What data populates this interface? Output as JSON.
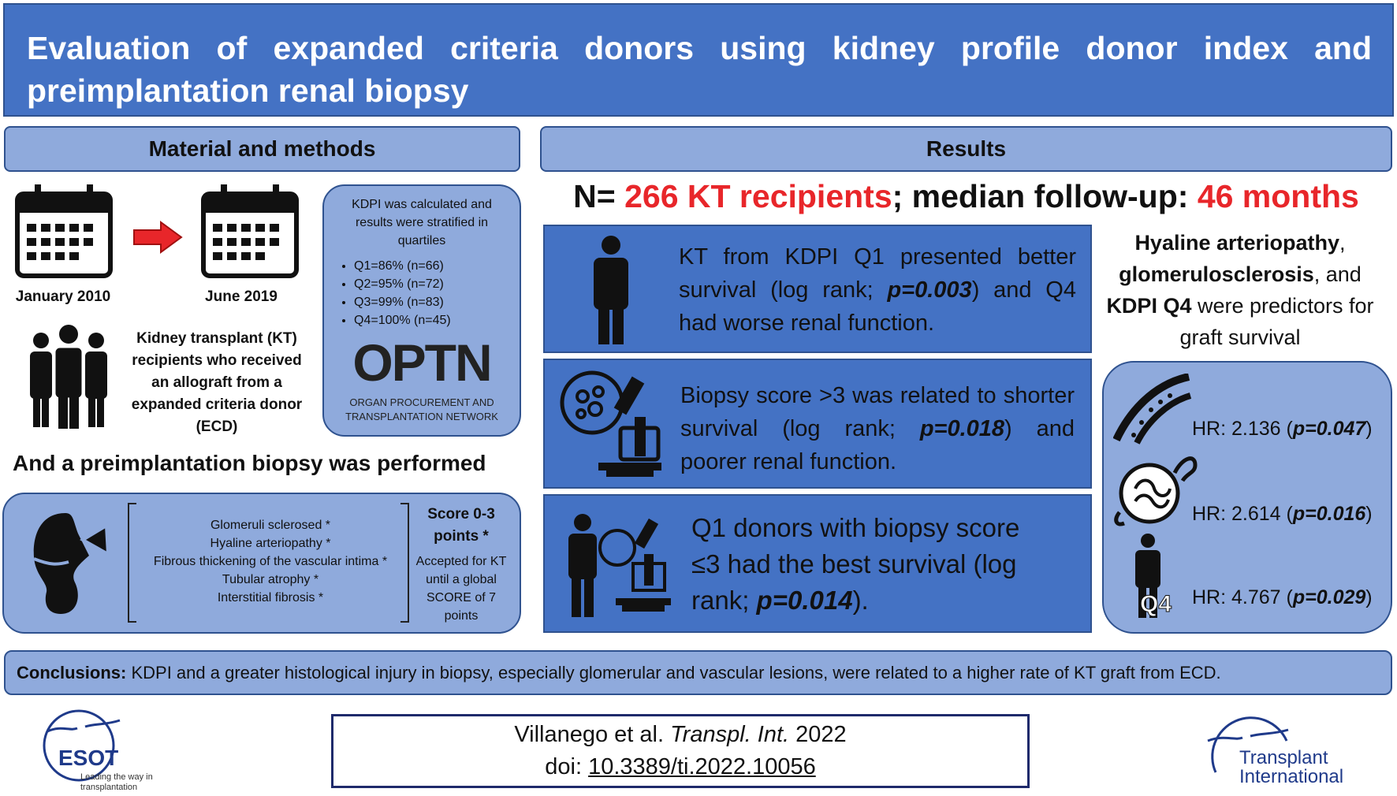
{
  "header": {
    "title": "Evaluation of expanded criteria donors using kidney profile donor index and preimplantation renal biopsy"
  },
  "methods": {
    "heading": "Material and methods",
    "start_date": "January 2010",
    "end_date": "June 2019",
    "recipients": "Kidney transplant (KT) recipients who received an allograft from a expanded criteria donor (ECD)",
    "kdpi": {
      "intro": "KDPI was calculated and results were stratified in quartiles",
      "quartiles": [
        "Q1=86% (n=66)",
        "Q2=95% (n=72)",
        "Q3=99% (n=83)",
        "Q4=100% (n=45)"
      ],
      "logo": "OPTN",
      "logo_subtitle": "ORGAN PROCUREMENT AND TRANSPLANTATION NETWORK"
    },
    "biopsy_statement": "And a preimplantation biopsy was performed",
    "biopsy": {
      "criteria": [
        "Glomeruli sclerosed *",
        "Hyaline arteriopathy *",
        "Fibrous thickening of the vascular intima *",
        "Tubular atrophy *",
        "Interstitial fibrosis *"
      ],
      "score_title": "Score 0-3 points *",
      "score_note": "Accepted for KT until a global SCORE of 7 points"
    }
  },
  "results": {
    "heading": "Results",
    "summary": [
      "N= ",
      "266 KT recipients",
      "; median follow-up: ",
      "46 months"
    ],
    "findings": [
      [
        "KT from KDPI Q1 presented better survival (log rank; ",
        "p=0.003",
        ") and Q4 had worse renal function."
      ],
      [
        "Biopsy score >3 was related to shorter survival (log rank; ",
        "p=0.018",
        ") and poorer renal function."
      ],
      [
        "Q1 donors with biopsy score ≤3 had the best survival (log rank; ",
        "p=0.014",
        ")."
      ]
    ],
    "predictors": [
      "Hyaline arteriopathy",
      ", ",
      "glomerulosclerosis",
      ", and ",
      "KDPI Q4",
      " were predictors for graft survival"
    ],
    "hazard_ratios": [
      {
        "hr": "HR: 2.136 (",
        "p": "p=0.047",
        "close": ")"
      },
      {
        "hr": "HR: 2.614 (",
        "p": "p=0.016",
        "close": ")"
      },
      {
        "hr": "HR: 4.767 (",
        "p": "p=0.029",
        "close": ")"
      }
    ],
    "q4_icon_label": "Q4"
  },
  "conclusion": {
    "label": "Conclusions:",
    "text": "KDPI and a greater histological injury in biopsy, especially glomerular and vascular lesions, were related to a higher rate of KT graft from ECD."
  },
  "citation": {
    "authors": "Villanego et al.",
    "journal": "Transpl. Int.",
    "year": "2022",
    "doi_label": "doi:",
    "doi": "10.3389/ti.2022.10056"
  },
  "logos": {
    "esot": "ESOT",
    "esot_tagline": "Leading the way in transplantation",
    "journal": "Transplant International"
  }
}
